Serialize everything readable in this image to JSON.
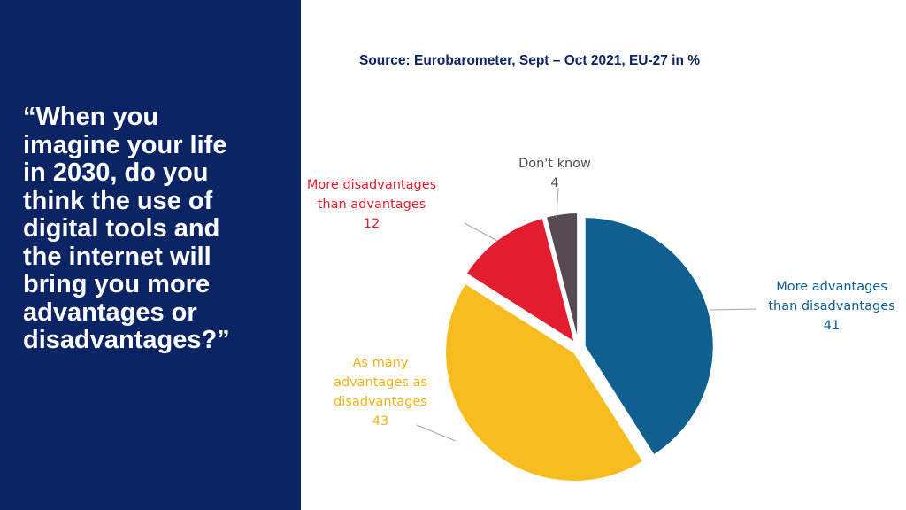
{
  "question": {
    "lines": [
      "“When you",
      "imagine your life",
      "in 2030, do you",
      "think the use of",
      "digital tools and",
      "the internet will",
      "bring you more",
      "advantages or",
      "disadvantages?”"
    ]
  },
  "source": "Source: Eurobarometer, Sept – Oct 2021, EU-27 in %",
  "colors": {
    "panel": "#0b2463",
    "white": "#ffffff"
  },
  "chart_data": {
    "type": "pie",
    "exploded": true,
    "unit": "%",
    "slices": [
      {
        "label_lines": [
          "More advantages",
          "than disadvantages"
        ],
        "value": 41,
        "color": "#0f5f8f"
      },
      {
        "label_lines": [
          "As many",
          "advantages as",
          "disadvantages"
        ],
        "value": 43,
        "color": "#f6bc20"
      },
      {
        "label_lines": [
          "More disadvantages",
          "than advantages"
        ],
        "value": 12,
        "color": "#e31d30"
      },
      {
        "label_lines": [
          "Don't know"
        ],
        "value": 4,
        "color": "#564b51"
      }
    ]
  }
}
